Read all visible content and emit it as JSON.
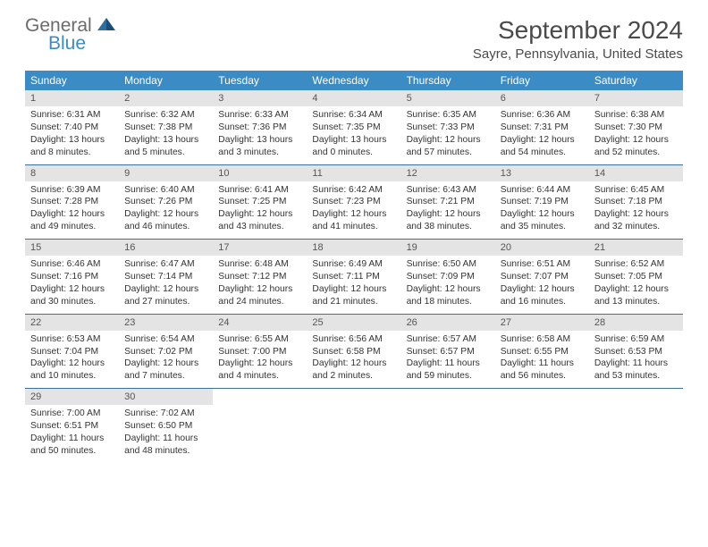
{
  "brand": {
    "part1": "General",
    "part2": "Blue",
    "color_general": "#6b6b6b",
    "color_blue": "#3b8bc4",
    "mark_color": "#2f6fa3"
  },
  "title": "September 2024",
  "location": "Sayre, Pennsylvania, United States",
  "colors": {
    "header_bg": "#3b8bc4",
    "header_text": "#ffffff",
    "daynum_bg": "#e4e4e4",
    "daynum_text": "#555555",
    "week_border": "#3b6f9c",
    "body_text": "#333333",
    "page_bg": "#ffffff"
  },
  "weekdays": [
    "Sunday",
    "Monday",
    "Tuesday",
    "Wednesday",
    "Thursday",
    "Friday",
    "Saturday"
  ],
  "weeks": [
    [
      {
        "n": "1",
        "sunrise": "Sunrise: 6:31 AM",
        "sunset": "Sunset: 7:40 PM",
        "daylight": "Daylight: 13 hours and 8 minutes."
      },
      {
        "n": "2",
        "sunrise": "Sunrise: 6:32 AM",
        "sunset": "Sunset: 7:38 PM",
        "daylight": "Daylight: 13 hours and 5 minutes."
      },
      {
        "n": "3",
        "sunrise": "Sunrise: 6:33 AM",
        "sunset": "Sunset: 7:36 PM",
        "daylight": "Daylight: 13 hours and 3 minutes."
      },
      {
        "n": "4",
        "sunrise": "Sunrise: 6:34 AM",
        "sunset": "Sunset: 7:35 PM",
        "daylight": "Daylight: 13 hours and 0 minutes."
      },
      {
        "n": "5",
        "sunrise": "Sunrise: 6:35 AM",
        "sunset": "Sunset: 7:33 PM",
        "daylight": "Daylight: 12 hours and 57 minutes."
      },
      {
        "n": "6",
        "sunrise": "Sunrise: 6:36 AM",
        "sunset": "Sunset: 7:31 PM",
        "daylight": "Daylight: 12 hours and 54 minutes."
      },
      {
        "n": "7",
        "sunrise": "Sunrise: 6:38 AM",
        "sunset": "Sunset: 7:30 PM",
        "daylight": "Daylight: 12 hours and 52 minutes."
      }
    ],
    [
      {
        "n": "8",
        "sunrise": "Sunrise: 6:39 AM",
        "sunset": "Sunset: 7:28 PM",
        "daylight": "Daylight: 12 hours and 49 minutes."
      },
      {
        "n": "9",
        "sunrise": "Sunrise: 6:40 AM",
        "sunset": "Sunset: 7:26 PM",
        "daylight": "Daylight: 12 hours and 46 minutes."
      },
      {
        "n": "10",
        "sunrise": "Sunrise: 6:41 AM",
        "sunset": "Sunset: 7:25 PM",
        "daylight": "Daylight: 12 hours and 43 minutes."
      },
      {
        "n": "11",
        "sunrise": "Sunrise: 6:42 AM",
        "sunset": "Sunset: 7:23 PM",
        "daylight": "Daylight: 12 hours and 41 minutes."
      },
      {
        "n": "12",
        "sunrise": "Sunrise: 6:43 AM",
        "sunset": "Sunset: 7:21 PM",
        "daylight": "Daylight: 12 hours and 38 minutes."
      },
      {
        "n": "13",
        "sunrise": "Sunrise: 6:44 AM",
        "sunset": "Sunset: 7:19 PM",
        "daylight": "Daylight: 12 hours and 35 minutes."
      },
      {
        "n": "14",
        "sunrise": "Sunrise: 6:45 AM",
        "sunset": "Sunset: 7:18 PM",
        "daylight": "Daylight: 12 hours and 32 minutes."
      }
    ],
    [
      {
        "n": "15",
        "sunrise": "Sunrise: 6:46 AM",
        "sunset": "Sunset: 7:16 PM",
        "daylight": "Daylight: 12 hours and 30 minutes."
      },
      {
        "n": "16",
        "sunrise": "Sunrise: 6:47 AM",
        "sunset": "Sunset: 7:14 PM",
        "daylight": "Daylight: 12 hours and 27 minutes."
      },
      {
        "n": "17",
        "sunrise": "Sunrise: 6:48 AM",
        "sunset": "Sunset: 7:12 PM",
        "daylight": "Daylight: 12 hours and 24 minutes."
      },
      {
        "n": "18",
        "sunrise": "Sunrise: 6:49 AM",
        "sunset": "Sunset: 7:11 PM",
        "daylight": "Daylight: 12 hours and 21 minutes."
      },
      {
        "n": "19",
        "sunrise": "Sunrise: 6:50 AM",
        "sunset": "Sunset: 7:09 PM",
        "daylight": "Daylight: 12 hours and 18 minutes."
      },
      {
        "n": "20",
        "sunrise": "Sunrise: 6:51 AM",
        "sunset": "Sunset: 7:07 PM",
        "daylight": "Daylight: 12 hours and 16 minutes."
      },
      {
        "n": "21",
        "sunrise": "Sunrise: 6:52 AM",
        "sunset": "Sunset: 7:05 PM",
        "daylight": "Daylight: 12 hours and 13 minutes."
      }
    ],
    [
      {
        "n": "22",
        "sunrise": "Sunrise: 6:53 AM",
        "sunset": "Sunset: 7:04 PM",
        "daylight": "Daylight: 12 hours and 10 minutes."
      },
      {
        "n": "23",
        "sunrise": "Sunrise: 6:54 AM",
        "sunset": "Sunset: 7:02 PM",
        "daylight": "Daylight: 12 hours and 7 minutes."
      },
      {
        "n": "24",
        "sunrise": "Sunrise: 6:55 AM",
        "sunset": "Sunset: 7:00 PM",
        "daylight": "Daylight: 12 hours and 4 minutes."
      },
      {
        "n": "25",
        "sunrise": "Sunrise: 6:56 AM",
        "sunset": "Sunset: 6:58 PM",
        "daylight": "Daylight: 12 hours and 2 minutes."
      },
      {
        "n": "26",
        "sunrise": "Sunrise: 6:57 AM",
        "sunset": "Sunset: 6:57 PM",
        "daylight": "Daylight: 11 hours and 59 minutes."
      },
      {
        "n": "27",
        "sunrise": "Sunrise: 6:58 AM",
        "sunset": "Sunset: 6:55 PM",
        "daylight": "Daylight: 11 hours and 56 minutes."
      },
      {
        "n": "28",
        "sunrise": "Sunrise: 6:59 AM",
        "sunset": "Sunset: 6:53 PM",
        "daylight": "Daylight: 11 hours and 53 minutes."
      }
    ],
    [
      {
        "n": "29",
        "sunrise": "Sunrise: 7:00 AM",
        "sunset": "Sunset: 6:51 PM",
        "daylight": "Daylight: 11 hours and 50 minutes."
      },
      {
        "n": "30",
        "sunrise": "Sunrise: 7:02 AM",
        "sunset": "Sunset: 6:50 PM",
        "daylight": "Daylight: 11 hours and 48 minutes."
      },
      null,
      null,
      null,
      null,
      null
    ]
  ]
}
